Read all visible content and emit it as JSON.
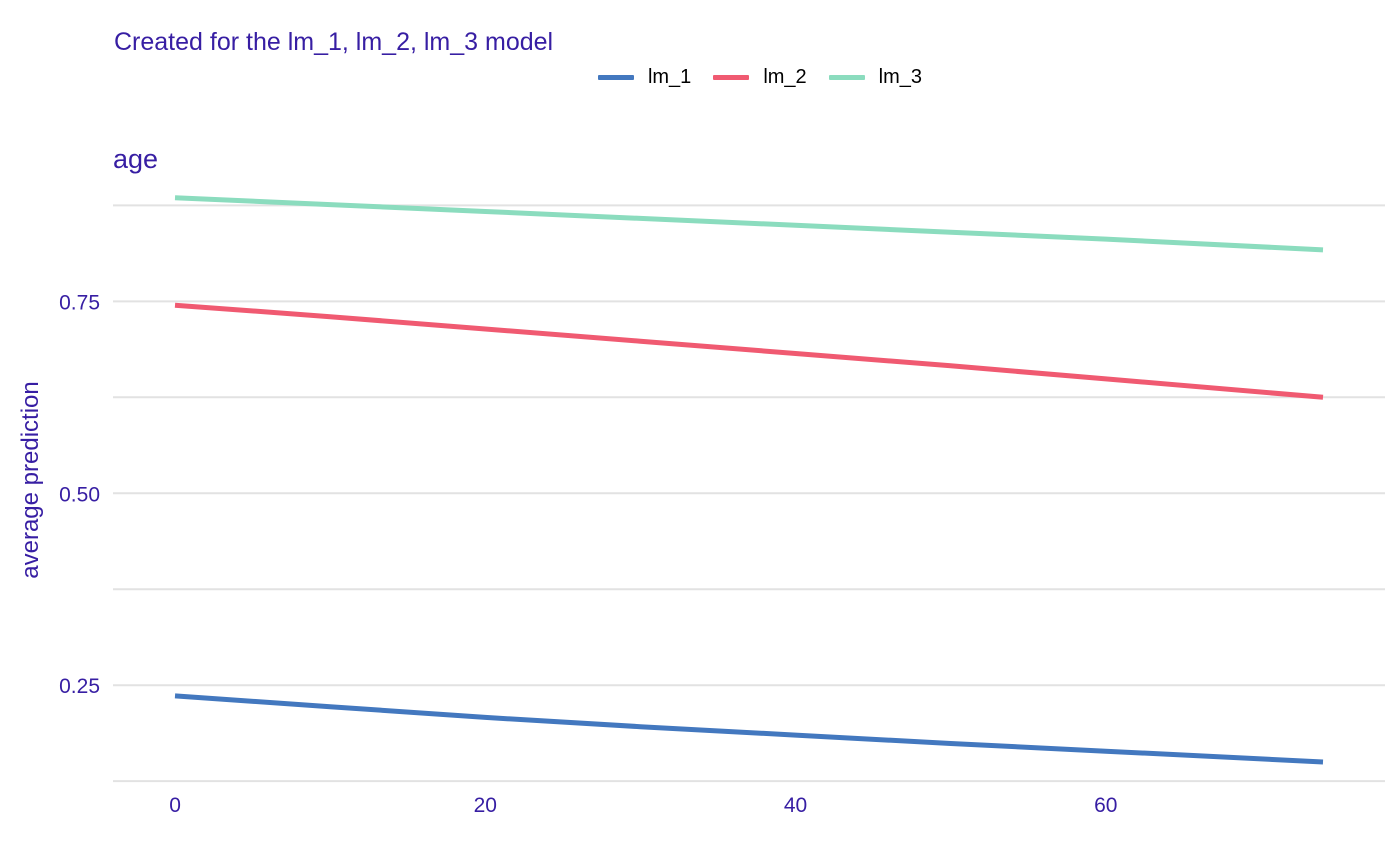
{
  "subtitle": "Created for the lm_1, lm_2, lm_3 model",
  "chart_data": {
    "type": "line",
    "title": "age",
    "xlabel": "",
    "ylabel": "average prediction",
    "xlim": [
      -4,
      78
    ],
    "ylim": [
      0.12,
      0.895
    ],
    "x_ticks": [
      0,
      20,
      40,
      60
    ],
    "y_ticks": [
      0.25,
      0.5,
      0.75
    ],
    "y_minor_gridlines": [
      0.125,
      0.375,
      0.625,
      0.875
    ],
    "grid": true,
    "legend_position": "top",
    "x": [
      0,
      74
    ],
    "series": [
      {
        "name": "lm_1",
        "color": "#4378bf",
        "x": [
          0,
          10,
          20,
          30,
          40,
          50,
          60,
          74
        ],
        "values": [
          0.236,
          0.222,
          0.208,
          0.196,
          0.185,
          0.174,
          0.164,
          0.15
        ]
      },
      {
        "name": "lm_2",
        "color": "#f05a71",
        "x": [
          0,
          10,
          20,
          30,
          40,
          50,
          60,
          74
        ],
        "values": [
          0.745,
          0.73,
          0.714,
          0.698,
          0.682,
          0.666,
          0.649,
          0.625
        ]
      },
      {
        "name": "lm_3",
        "color": "#8bdcbe",
        "x": [
          0,
          10,
          20,
          30,
          40,
          50,
          60,
          74
        ],
        "values": [
          0.885,
          0.876,
          0.867,
          0.858,
          0.849,
          0.84,
          0.831,
          0.817
        ]
      }
    ]
  }
}
